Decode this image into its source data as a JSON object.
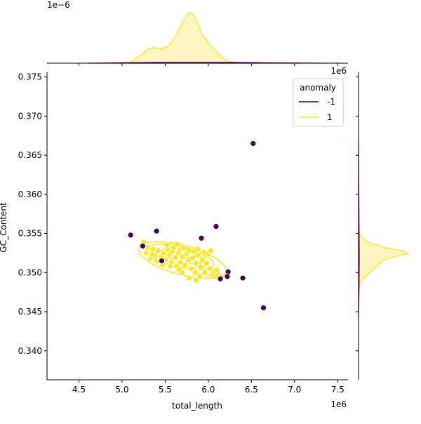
{
  "chart_data": {
    "type": "scatter",
    "xlabel": "total_length",
    "ylabel": "GC_Content",
    "x_scale_label": "1e6",
    "top_marginal_scale_label": "1e−6",
    "right_marginal_scale_label": "1e6",
    "xlim": [
      4.13,
      7.62
    ],
    "ylim": [
      0.3363,
      0.3756
    ],
    "x_ticks": [
      4.5,
      5.0,
      5.5,
      6.0,
      6.5,
      7.0,
      7.5
    ],
    "x_tick_labels": [
      "4.5",
      "5.0",
      "5.5",
      "6.0",
      "6.5",
      "7.0",
      "7.5"
    ],
    "y_ticks": [
      0.34,
      0.345,
      0.35,
      0.355,
      0.36,
      0.365,
      0.37,
      0.375
    ],
    "y_tick_labels": [
      "0.340",
      "0.345",
      "0.350",
      "0.355",
      "0.360",
      "0.365",
      "0.370",
      "0.375"
    ],
    "grid": false,
    "legend": {
      "title": "anomaly",
      "placement": "top-right",
      "entries": [
        {
          "label": "-1",
          "color": "#440154"
        },
        {
          "label": "1",
          "color": "#fde725"
        }
      ]
    },
    "series": [
      {
        "name": "-1",
        "color": "#440154",
        "points": [
          [
            6.52,
            0.3665
          ],
          [
            5.1,
            0.3548
          ],
          [
            5.4,
            0.3553
          ],
          [
            5.92,
            0.3544
          ],
          [
            6.09,
            0.3559
          ],
          [
            5.24,
            0.3534
          ],
          [
            5.46,
            0.3515
          ],
          [
            6.23,
            0.3501
          ],
          [
            6.22,
            0.3495
          ],
          [
            6.14,
            0.3492
          ],
          [
            6.4,
            0.3493
          ],
          [
            6.64,
            0.3455
          ]
        ]
      },
      {
        "name": "1",
        "color": "#fde725",
        "points": [
          [
            5.25,
            0.3539
          ],
          [
            5.3,
            0.3532
          ],
          [
            5.28,
            0.3525
          ],
          [
            5.33,
            0.3518
          ],
          [
            5.36,
            0.353
          ],
          [
            5.38,
            0.3522
          ],
          [
            5.42,
            0.3528
          ],
          [
            5.45,
            0.352
          ],
          [
            5.48,
            0.3525
          ],
          [
            5.5,
            0.3516
          ],
          [
            5.52,
            0.353
          ],
          [
            5.55,
            0.3523
          ],
          [
            5.57,
            0.3513
          ],
          [
            5.58,
            0.3527
          ],
          [
            5.6,
            0.3532
          ],
          [
            5.62,
            0.3519
          ],
          [
            5.63,
            0.3508
          ],
          [
            5.65,
            0.3525
          ],
          [
            5.67,
            0.3529
          ],
          [
            5.68,
            0.3513
          ],
          [
            5.7,
            0.352
          ],
          [
            5.72,
            0.3531
          ],
          [
            5.73,
            0.3509
          ],
          [
            5.75,
            0.3524
          ],
          [
            5.77,
            0.3516
          ],
          [
            5.78,
            0.3528
          ],
          [
            5.8,
            0.3505
          ],
          [
            5.82,
            0.3519
          ],
          [
            5.83,
            0.3527
          ],
          [
            5.85,
            0.35
          ],
          [
            5.86,
            0.3512
          ],
          [
            5.88,
            0.3522
          ],
          [
            5.9,
            0.3495
          ],
          [
            5.91,
            0.3507
          ],
          [
            5.93,
            0.3516
          ],
          [
            5.95,
            0.3526
          ],
          [
            5.96,
            0.35
          ],
          [
            5.98,
            0.3512
          ],
          [
            6.0,
            0.3524
          ],
          [
            6.02,
            0.3505
          ],
          [
            6.04,
            0.3497
          ],
          [
            6.06,
            0.35
          ],
          [
            6.08,
            0.3495
          ],
          [
            6.1,
            0.3503
          ],
          [
            6.12,
            0.3497
          ],
          [
            6.15,
            0.3494
          ],
          [
            5.7,
            0.35
          ],
          [
            5.66,
            0.3504
          ],
          [
            5.78,
            0.3493
          ],
          [
            5.86,
            0.349
          ],
          [
            5.47,
            0.351
          ],
          [
            5.56,
            0.3508
          ],
          [
            5.4,
            0.3515
          ],
          [
            5.35,
            0.3523
          ],
          [
            5.52,
            0.3535
          ],
          [
            5.64,
            0.3536
          ],
          [
            5.88,
            0.353
          ],
          [
            6.03,
            0.3528
          ]
        ]
      }
    ],
    "kde_fill_color": "#fff5c2",
    "top_marginal": {
      "series_1_density": [
        [
          4.6,
          0.0
        ],
        [
          5.1,
          0.02
        ],
        [
          5.22,
          0.16
        ],
        [
          5.3,
          0.28
        ],
        [
          5.38,
          0.31
        ],
        [
          5.46,
          0.28
        ],
        [
          5.54,
          0.34
        ],
        [
          5.62,
          0.52
        ],
        [
          5.7,
          0.8
        ],
        [
          5.76,
          0.97
        ],
        [
          5.8,
          1.0
        ],
        [
          5.85,
          0.9
        ],
        [
          5.92,
          0.6
        ],
        [
          6.0,
          0.4
        ],
        [
          6.1,
          0.22
        ],
        [
          6.2,
          0.05
        ],
        [
          6.35,
          0.0
        ],
        [
          7.0,
          0.0
        ]
      ],
      "series_neg1_density": [
        [
          4.6,
          0.0
        ],
        [
          5.1,
          0.01
        ],
        [
          5.6,
          0.02
        ],
        [
          6.1,
          0.02
        ],
        [
          6.6,
          0.01
        ],
        [
          7.4,
          0.0
        ]
      ]
    },
    "right_marginal": {
      "series_1_density": [
        [
          0.348,
          0.0
        ],
        [
          0.3488,
          0.04
        ],
        [
          0.3494,
          0.12
        ],
        [
          0.35,
          0.22
        ],
        [
          0.3505,
          0.32
        ],
        [
          0.351,
          0.4
        ],
        [
          0.3516,
          0.5
        ],
        [
          0.352,
          0.7
        ],
        [
          0.3524,
          1.0
        ],
        [
          0.3528,
          0.86
        ],
        [
          0.3532,
          0.52
        ],
        [
          0.3538,
          0.22
        ],
        [
          0.3545,
          0.06
        ],
        [
          0.3555,
          0.0
        ]
      ],
      "series_neg1_density": [
        [
          0.344,
          0.0
        ],
        [
          0.348,
          0.01
        ],
        [
          0.352,
          0.015
        ],
        [
          0.356,
          0.01
        ],
        [
          0.367,
          0.0
        ]
      ]
    }
  }
}
